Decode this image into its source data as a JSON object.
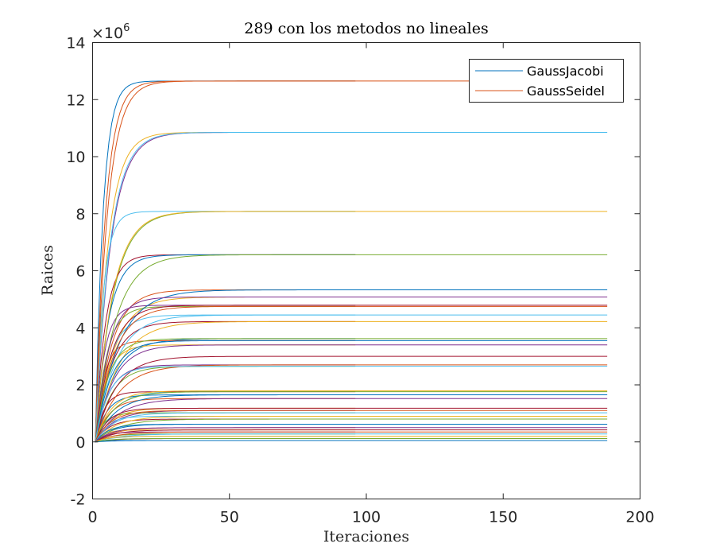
{
  "chart_data": {
    "type": "line",
    "title": "289 con los metodos no lineales",
    "xlabel": "Iteraciones",
    "ylabel": "Raices",
    "xlim": [
      0,
      200
    ],
    "ylim": [
      -2,
      14
    ],
    "y_multiplier_base": "×10",
    "y_multiplier_exponent": "6",
    "xticks": [
      0,
      50,
      100,
      150,
      200
    ],
    "xtick_labels": [
      "0",
      "50",
      "100",
      "150",
      "200"
    ],
    "yticks": [
      -2,
      0,
      2,
      4,
      6,
      8,
      10,
      12,
      14
    ],
    "ytick_labels": [
      "-2",
      "0",
      "2",
      "4",
      "6",
      "8",
      "10",
      "12",
      "14"
    ],
    "grid": false,
    "legend_position": "top-right",
    "series": [
      {
        "name": "GaussJacobi",
        "iterations": 96,
        "color_cycle": [
          "#0072bd",
          "#d95319",
          "#edb120",
          "#7e2f8e",
          "#77ac30",
          "#4dbeee",
          "#a2142f"
        ],
        "final_values": [
          12.65,
          12.65,
          10.85,
          10.85,
          8.08,
          8.08,
          6.56,
          6.56,
          5.33,
          5.08,
          4.79,
          4.75,
          4.45,
          4.22,
          3.62,
          3.55,
          3.4,
          2.7,
          2.65,
          1.79,
          1.76,
          1.65,
          1.52,
          1.18,
          1.1,
          1.02,
          0.9,
          0.8,
          0.62,
          0.5,
          0.42,
          0.35,
          0.28,
          0.2,
          0.12,
          0.05
        ]
      },
      {
        "name": "GaussSeidel",
        "iterations": 188,
        "color_cycle": [
          "#d95319",
          "#4dbeee",
          "#edb120",
          "#77ac30",
          "#0072bd",
          "#7e2f8e",
          "#a2142f"
        ],
        "final_values": [
          12.65,
          10.85,
          8.08,
          6.56,
          5.33,
          5.08,
          4.79,
          4.75,
          4.45,
          4.22,
          3.62,
          3.55,
          3.4,
          3.0,
          2.7,
          2.65,
          1.79,
          1.76,
          1.65,
          1.52,
          1.18,
          1.1,
          1.02,
          0.9,
          0.8,
          0.62,
          0.5,
          0.42,
          0.35,
          0.28,
          0.2,
          0.12,
          0.05
        ]
      }
    ]
  }
}
